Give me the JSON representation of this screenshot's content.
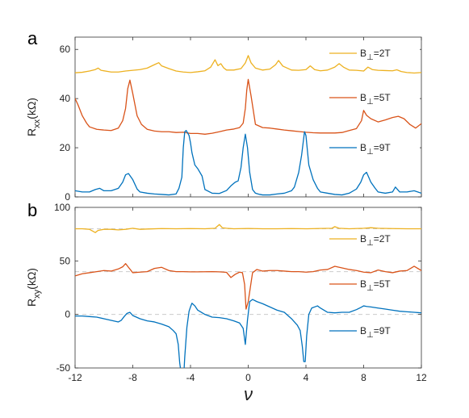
{
  "colors": {
    "B2": "#EDB120",
    "B5": "#D95319",
    "B9": "#0072BD",
    "axis": "#333333",
    "dashed": "#cccccc"
  },
  "chart_data": [
    {
      "type": "line",
      "panel_label": "a",
      "xlim": [
        -12,
        12
      ],
      "ylim": [
        0,
        65
      ],
      "xticks": [
        "-12",
        "-8",
        "-4",
        "0",
        "4",
        "8",
        "12"
      ],
      "xtick_values": [
        -12,
        -8,
        -4,
        0,
        4,
        8,
        12
      ],
      "show_xtick_labels": false,
      "yticks": [
        "0",
        "20",
        "40",
        "60"
      ],
      "ytick_values": [
        0,
        20,
        40,
        60
      ],
      "ylabel": "R",
      "ylabel_sub": "xx",
      "ylabel_unit": "(kΩ)",
      "legend": [
        {
          "label_main": "B",
          "label_sub": "⊥",
          "label_rest": "=2T",
          "color_key": "B2"
        },
        {
          "label_main": "B",
          "label_sub": "⊥",
          "label_rest": "=5T",
          "color_key": "B5"
        },
        {
          "label_main": "B",
          "label_sub": "⊥",
          "label_rest": "=9T",
          "color_key": "B9"
        }
      ],
      "legend_placement": "right",
      "series": [
        {
          "color_key": "B2",
          "x": [
            -12,
            -11.5,
            -11,
            -10.6,
            -10.4,
            -10.2,
            -9.5,
            -9,
            -8.5,
            -8,
            -7.5,
            -7,
            -6.5,
            -6.2,
            -6,
            -5.5,
            -5,
            -4.5,
            -4,
            -3.5,
            -3,
            -2.6,
            -2.3,
            -2.1,
            -1.9,
            -1.7,
            -1.5,
            -1,
            -0.5,
            -0.2,
            0,
            0.2,
            0.5,
            1,
            1.5,
            1.9,
            2.1,
            2.4,
            3,
            3.5,
            4,
            4.3,
            4.6,
            5,
            5.5,
            6,
            6.3,
            6.6,
            7,
            7.5,
            8,
            8.3,
            8.6,
            9,
            9.5,
            10,
            10.3,
            10.6,
            11,
            11.5,
            12
          ],
          "y": [
            50.5,
            50.7,
            51.2,
            51.8,
            52.4,
            51.5,
            50.8,
            50.8,
            51.2,
            51.5,
            51.8,
            52.4,
            53.8,
            54.6,
            53.3,
            52.2,
            51.2,
            50.8,
            50.6,
            50.9,
            51.3,
            52.8,
            55.8,
            53.4,
            54.2,
            52.5,
            51.6,
            51.6,
            52.2,
            54.5,
            57.5,
            54.5,
            52.4,
            51.6,
            52,
            53.8,
            55.5,
            53.2,
            51.6,
            51.5,
            51.8,
            53.3,
            51.8,
            51.3,
            51.6,
            52.8,
            54.2,
            52.8,
            51.6,
            51.5,
            51.2,
            52.8,
            51.8,
            51.5,
            51.4,
            51.3,
            51.7,
            51,
            50.6,
            50.4,
            50.6
          ]
        },
        {
          "color_key": "B5",
          "x": [
            -12,
            -11.8,
            -11.5,
            -11.2,
            -11,
            -10.5,
            -10,
            -9.5,
            -9,
            -8.7,
            -8.5,
            -8.35,
            -8.2,
            -8,
            -7.7,
            -7.4,
            -7,
            -6.5,
            -6,
            -5.5,
            -5,
            -4.5,
            -4,
            -3.5,
            -3,
            -2.5,
            -2,
            -1.5,
            -1,
            -0.6,
            -0.35,
            -0.2,
            -0.1,
            0,
            0.2,
            0.5,
            1,
            1.5,
            2,
            2.5,
            3,
            3.5,
            4,
            4.5,
            5,
            5.5,
            6,
            6.5,
            7,
            7.5,
            7.85,
            8,
            8.2,
            8.5,
            9,
            9.5,
            10,
            10.4,
            10.8,
            11.2,
            11.6,
            12
          ],
          "y": [
            40,
            37.5,
            33,
            30,
            28.5,
            27.5,
            27.2,
            27,
            28,
            31,
            36,
            44,
            47.5,
            42,
            33,
            29.5,
            27.5,
            26.8,
            26.5,
            26.5,
            26.2,
            26.3,
            25.8,
            25.8,
            25.5,
            25.9,
            26.5,
            27.2,
            27.6,
            28.2,
            30,
            36,
            43.5,
            47.8,
            41,
            29.5,
            28.2,
            28,
            27.6,
            27.2,
            26.9,
            26.6,
            26.3,
            26.1,
            26,
            26,
            26,
            26.2,
            27,
            27.8,
            31,
            35.2,
            33.2,
            31.8,
            30.5,
            31.3,
            32.3,
            32.8,
            31.8,
            29.5,
            28,
            29.8
          ]
        },
        {
          "color_key": "B9",
          "x": [
            -12,
            -11.5,
            -11,
            -10.6,
            -10.3,
            -10,
            -9.5,
            -9,
            -8.7,
            -8.5,
            -8.3,
            -8,
            -7.7,
            -7.5,
            -7,
            -6.5,
            -6,
            -5.5,
            -5,
            -4.8,
            -4.6,
            -4.5,
            -4.4,
            -4.3,
            -4.1,
            -4,
            -3.9,
            -3.7,
            -3.5,
            -3.2,
            -3,
            -2.5,
            -2,
            -1.5,
            -1.2,
            -0.9,
            -0.7,
            -0.5,
            -0.35,
            -0.2,
            -0.05,
            0.1,
            0.3,
            0.5,
            0.8,
            1,
            1.5,
            2,
            2.5,
            3,
            3.2,
            3.5,
            3.7,
            3.9,
            4,
            4.2,
            4.5,
            4.8,
            5,
            5.5,
            6,
            6.5,
            7,
            7.5,
            7.8,
            8,
            8.2,
            8.5,
            8.8,
            9,
            9.5,
            10,
            10.2,
            10.5,
            11,
            11.5,
            12
          ],
          "y": [
            2.5,
            2,
            2,
            3,
            3.5,
            2.5,
            2.5,
            3.5,
            6,
            9,
            9.5,
            7,
            3.2,
            2,
            1.5,
            1.2,
            1,
            0.8,
            1.2,
            3.5,
            8,
            20,
            26.5,
            27,
            25,
            22,
            18,
            13,
            11.5,
            8.5,
            3,
            1.5,
            1.4,
            2.6,
            4.5,
            6,
            6.5,
            12,
            20,
            25.5,
            20,
            10,
            3,
            1.5,
            1,
            0.8,
            0.8,
            1.2,
            1.5,
            2.5,
            4,
            10,
            17,
            26.5,
            25,
            13,
            7,
            3.5,
            2,
            1.5,
            1,
            0.8,
            1.5,
            3.2,
            6,
            9,
            10,
            6,
            3.5,
            2,
            1.5,
            2,
            4,
            2,
            2,
            2.5,
            1.5
          ]
        }
      ]
    },
    {
      "type": "line",
      "panel_label": "b",
      "xlim": [
        -12,
        12
      ],
      "ylim": [
        -50,
        100
      ],
      "xticks": [
        "-12",
        "-8",
        "-4",
        "0",
        "4",
        "8",
        "12"
      ],
      "xtick_values": [
        -12,
        -8,
        -4,
        0,
        4,
        8,
        12
      ],
      "show_xtick_labels": true,
      "xlabel": "ν",
      "yticks": [
        "-50",
        "0",
        "50",
        "100"
      ],
      "ytick_values": [
        -50,
        0,
        50,
        100
      ],
      "ylabel": "R",
      "ylabel_sub": "xy",
      "ylabel_unit": "(kΩ)",
      "dashed_lines_y": [
        0,
        40,
        80
      ],
      "legend": [
        {
          "label_main": "B",
          "label_sub": "⊥",
          "label_rest": "=2T",
          "color_key": "B2"
        },
        {
          "label_main": "B",
          "label_sub": "⊥",
          "label_rest": "=5T",
          "color_key": "B5"
        },
        {
          "label_main": "B",
          "label_sub": "⊥",
          "label_rest": "=9T",
          "color_key": "B9"
        }
      ],
      "legend_placement": "right",
      "series": [
        {
          "color_key": "B2",
          "x": [
            -12,
            -11.5,
            -11,
            -10.8,
            -10.6,
            -10.4,
            -10,
            -9.5,
            -9,
            -8.5,
            -8,
            -7.5,
            -7,
            -6,
            -5,
            -4,
            -3,
            -2.3,
            -2,
            -1.8,
            -1.5,
            -1,
            0,
            1,
            2,
            3,
            4,
            5,
            5.8,
            6,
            6.3,
            7,
            8,
            8.5,
            9,
            10,
            11,
            12
          ],
          "y": [
            80,
            80,
            79.5,
            78,
            76.5,
            78.5,
            79.5,
            79.5,
            79,
            79.5,
            80.5,
            79.5,
            79.8,
            80.2,
            80,
            80.2,
            80,
            80.5,
            84,
            81,
            80.5,
            80,
            80.3,
            80,
            80,
            80.2,
            80,
            80.3,
            80.5,
            82,
            80.5,
            80,
            80.5,
            81,
            80.5,
            80.2,
            80,
            80
          ]
        },
        {
          "color_key": "B5",
          "x": [
            -12,
            -11.5,
            -11,
            -10.5,
            -10,
            -9.5,
            -9,
            -8.7,
            -8.5,
            -8.3,
            -8,
            -7.5,
            -7,
            -6.5,
            -6,
            -5.5,
            -5,
            -4.5,
            -4,
            -3.5,
            -3,
            -2.5,
            -2,
            -1.5,
            -1.2,
            -0.9,
            -0.6,
            -0.4,
            -0.25,
            -0.15,
            0,
            0.3,
            0.6,
            1,
            1.5,
            2,
            2.5,
            3,
            3.5,
            4,
            4.5,
            5,
            5.5,
            6,
            6.5,
            7,
            7.5,
            8,
            8.5,
            9,
            9.5,
            10,
            10.5,
            11,
            11.5,
            12
          ],
          "y": [
            36,
            38,
            39,
            40,
            41,
            40.5,
            42.5,
            44.5,
            47.5,
            44,
            39,
            39.5,
            40,
            43,
            44,
            41,
            40,
            40,
            39.8,
            39.8,
            39.9,
            40,
            39.8,
            39.3,
            34.5,
            37.5,
            39.5,
            39,
            28,
            5,
            12,
            39,
            42,
            40.5,
            41,
            41,
            40.5,
            40,
            40,
            39.5,
            40,
            41.5,
            42,
            45,
            43.5,
            42,
            41,
            39.5,
            39,
            41.5,
            40,
            39,
            40.5,
            41,
            45,
            41
          ]
        },
        {
          "color_key": "B9",
          "x": [
            -12,
            -11.5,
            -11,
            -10.5,
            -10,
            -9.5,
            -9,
            -8.8,
            -8.6,
            -8.4,
            -8.2,
            -8,
            -7.5,
            -7,
            -6.5,
            -6,
            -5.5,
            -5.2,
            -5,
            -4.85,
            -4.75,
            -4.6,
            -4.5,
            -4.4,
            -4.25,
            -4.1,
            -4,
            -3.9,
            -3.7,
            -3.5,
            -3,
            -2.5,
            -2,
            -1.5,
            -1,
            -0.6,
            -0.35,
            -0.2,
            -0.05,
            0.1,
            0.3,
            0.6,
            1,
            1.5,
            2,
            2.5,
            3,
            3.4,
            3.6,
            3.75,
            3.85,
            3.95,
            4.05,
            4.2,
            4.4,
            4.8,
            5,
            5.5,
            6,
            6.5,
            7,
            7.5,
            7.8,
            8,
            8.2,
            8.5,
            9,
            9.5,
            10,
            10.5,
            11,
            11.5,
            12
          ],
          "y": [
            -1.5,
            -1.5,
            -2,
            -2.5,
            -4,
            -5.5,
            -7,
            -5.5,
            -2,
            1,
            2,
            -1,
            -4,
            -6,
            -7,
            -9,
            -11.5,
            -15,
            -18,
            -28,
            -45,
            -60,
            -65,
            -40,
            -12,
            3,
            7,
            10.5,
            8,
            4,
            0,
            -2.5,
            -3,
            -4,
            -6,
            -8,
            -13,
            -28,
            -5,
            12,
            14,
            12,
            10,
            7,
            4,
            2,
            -4,
            -10,
            -15,
            -30,
            -44,
            -44,
            -20,
            0,
            6,
            8,
            6,
            2,
            1.5,
            2,
            2,
            4.5,
            6.5,
            8,
            7.5,
            7,
            6,
            5,
            4,
            3,
            2.5,
            2,
            1.5
          ]
        }
      ]
    }
  ]
}
